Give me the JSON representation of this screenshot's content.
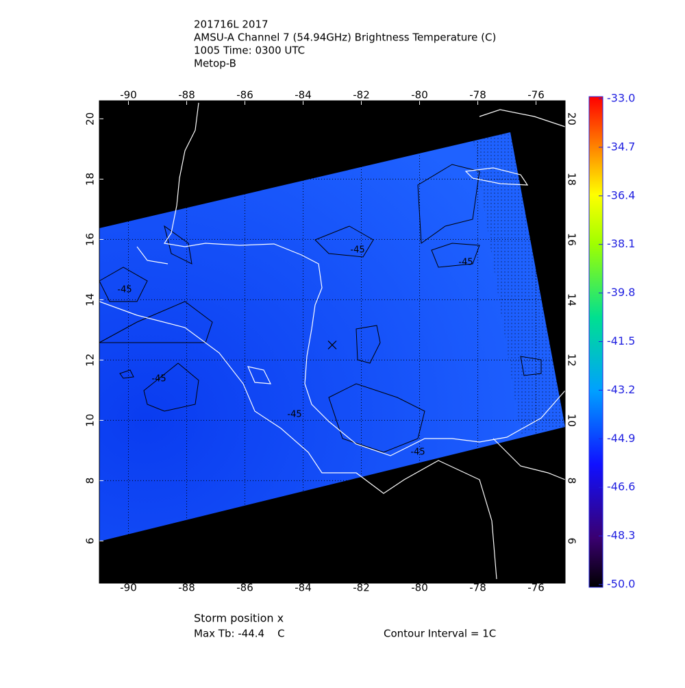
{
  "title": [
    "201716L 2017",
    "AMSU-A Channel 7 (54.94GHz) Brightness Temperature (C)",
    "1005 Time: 0300 UTC",
    "Metop-B"
  ],
  "map": {
    "xlim": [
      -91,
      -75
    ],
    "ylim": [
      4.6,
      20.6
    ],
    "xticks": [
      -90,
      -88,
      -86,
      -84,
      -82,
      -80,
      -78,
      -76
    ],
    "yticks": [
      6,
      8,
      10,
      12,
      14,
      16,
      18,
      20
    ],
    "storm": {
      "lon": -83.0,
      "lat": 12.5
    },
    "contour_labels": [
      -45,
      -45,
      -45,
      -45,
      -45,
      -45
    ]
  },
  "colorbar": {
    "lim": [
      -50,
      -33
    ],
    "ticks": [
      {
        "value": -33,
        "label": "-33.0"
      },
      {
        "value": -34.7,
        "label": "-34.7"
      },
      {
        "value": -36.4,
        "label": "-36.4"
      },
      {
        "value": -38.1,
        "label": "-38.1"
      },
      {
        "value": -39.8,
        "label": "-39.8"
      },
      {
        "value": -41.5,
        "label": "-41.5"
      },
      {
        "value": -43.2,
        "label": "-43.2"
      },
      {
        "value": -44.9,
        "label": "-44.9"
      },
      {
        "value": -46.6,
        "label": "-46.6"
      },
      {
        "value": -48.3,
        "label": "-48.3"
      },
      {
        "value": -50,
        "label": "-50.0"
      }
    ]
  },
  "footer": {
    "storm_position": "Storm position x",
    "max_tb": "Max Tb: -44.4    C",
    "contour_interval": "Contour Interval = 1C"
  }
}
